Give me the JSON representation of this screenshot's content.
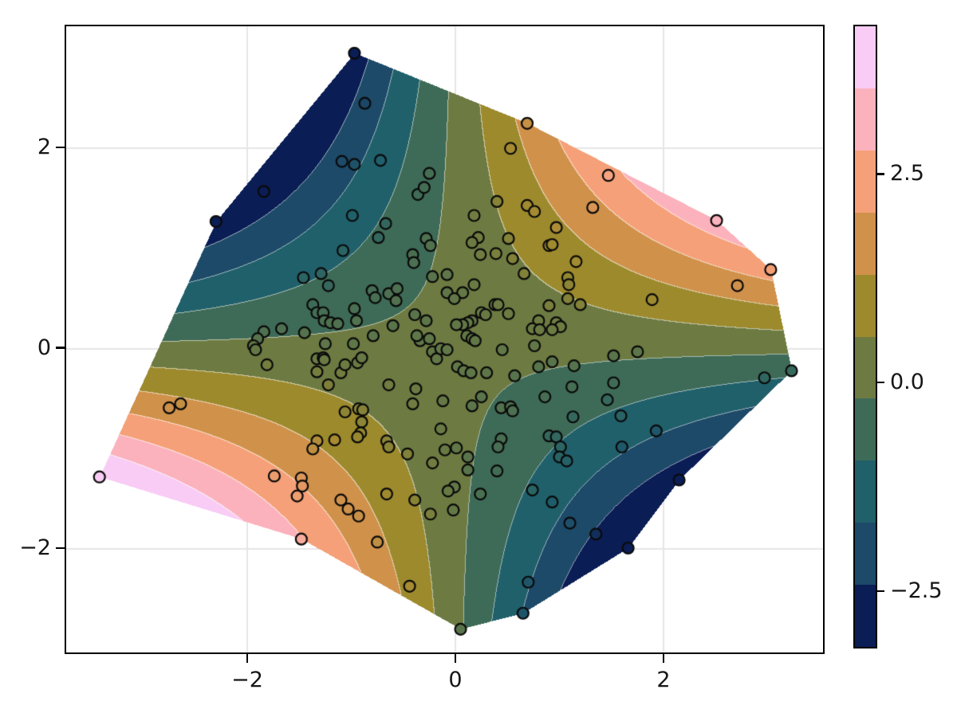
{
  "figure": {
    "background": "#ffffff",
    "grid_color": "#e6e6e6",
    "axis_color": "#000000",
    "label_color": "#161616"
  },
  "chart_data": {
    "type": "filled_contour_with_scatter",
    "title": "",
    "xlabel": "",
    "ylabel": "",
    "x_axis": {
      "ticks": [
        -2,
        0,
        2
      ],
      "tick_labels": [
        "−2",
        "0",
        "2"
      ],
      "range": [
        -3.75,
        3.54
      ],
      "grid": true
    },
    "y_axis": {
      "ticks": [
        2,
        0,
        -2
      ],
      "tick_labels": [
        "2",
        "0",
        "−2"
      ],
      "range": [
        -3.05,
        3.22
      ],
      "grid": true
    },
    "z_model": "saddle z = x*y, linearly contoured over convex hull of the scatter points",
    "levels": {
      "min": -3.17,
      "max": 4.28,
      "n_bands": 10
    },
    "band_colors": [
      "#0b1d55",
      "#1d4a68",
      "#20606b",
      "#3e6b57",
      "#6d7b42",
      "#9d8a2d",
      "#d0914a",
      "#f5a078",
      "#fbb2bc",
      "#f8ccf5"
    ],
    "separator_blend_white": 0.55,
    "marker": {
      "radius": 7,
      "stroke": "#0a0a0a",
      "stroke_width": 2.2
    },
    "colorbar": {
      "ticks": [
        {
          "value": 2.5,
          "label": "2.5"
        },
        {
          "value": 0.0,
          "label": "0.0"
        },
        {
          "value": -2.5,
          "label": "−2.5"
        }
      ]
    },
    "hull": [
      [
        -0.97,
        2.94
      ],
      [
        0.69,
        2.24
      ],
      [
        2.51,
        1.27
      ],
      [
        3.03,
        0.78
      ],
      [
        3.23,
        -0.23
      ],
      [
        2.15,
        -1.32
      ],
      [
        1.66,
        -2.0
      ],
      [
        0.65,
        -2.65
      ],
      [
        0.05,
        -2.81
      ],
      [
        -1.48,
        -1.91
      ],
      [
        -3.42,
        -1.29
      ],
      [
        -2.3,
        1.26
      ]
    ],
    "points": [
      [
        -0.97,
        2.94
      ],
      [
        -0.87,
        2.44
      ],
      [
        -1.09,
        1.86
      ],
      [
        -0.97,
        1.83
      ],
      [
        -0.72,
        1.87
      ],
      [
        -0.25,
        1.74
      ],
      [
        -0.36,
        1.53
      ],
      [
        -0.3,
        1.6
      ],
      [
        -1.84,
        1.56
      ],
      [
        -2.3,
        1.26
      ],
      [
        -0.99,
        1.32
      ],
      [
        -0.67,
        1.24
      ],
      [
        0.69,
        2.24
      ],
      [
        0.53,
        1.99
      ],
      [
        1.47,
        1.72
      ],
      [
        0.4,
        1.46
      ],
      [
        0.18,
        1.32
      ],
      [
        0.69,
        1.42
      ],
      [
        0.76,
        1.36
      ],
      [
        1.32,
        1.4
      ],
      [
        2.51,
        1.27
      ],
      [
        0.97,
        1.2
      ],
      [
        -0.74,
        1.1
      ],
      [
        -0.28,
        1.09
      ],
      [
        -0.24,
        1.02
      ],
      [
        -1.08,
        0.97
      ],
      [
        -0.41,
        0.93
      ],
      [
        -0.4,
        0.85
      ],
      [
        -1.46,
        0.7
      ],
      [
        -1.29,
        0.74
      ],
      [
        -1.22,
        0.62
      ],
      [
        -0.8,
        0.57
      ],
      [
        -0.77,
        0.5
      ],
      [
        -0.64,
        0.54
      ],
      [
        -0.56,
        0.59
      ],
      [
        -0.57,
        0.47
      ],
      [
        -0.22,
        0.71
      ],
      [
        -1.37,
        0.43
      ],
      [
        -1.33,
        0.35
      ],
      [
        -1.27,
        0.35
      ],
      [
        -1.26,
        0.27
      ],
      [
        -1.2,
        0.25
      ],
      [
        -1.13,
        0.24
      ],
      [
        -0.97,
        0.39
      ],
      [
        -0.95,
        0.27
      ],
      [
        -0.39,
        0.33
      ],
      [
        -0.28,
        0.27
      ],
      [
        -0.34,
        0.07
      ],
      [
        -0.25,
        0.09
      ],
      [
        -0.37,
        0.12
      ],
      [
        -1.84,
        0.16
      ],
      [
        -1.67,
        0.19
      ],
      [
        -1.45,
        0.15
      ],
      [
        -1.9,
        0.09
      ],
      [
        -1.94,
        0.02
      ],
      [
        -1.92,
        -0.02
      ],
      [
        -0.79,
        0.12
      ],
      [
        -0.6,
        0.22
      ],
      [
        -1.25,
        0.04
      ],
      [
        -0.98,
        0.04
      ],
      [
        -1.81,
        -0.17
      ],
      [
        -1.33,
        -0.11
      ],
      [
        -1.27,
        -0.1
      ],
      [
        -1.33,
        -0.24
      ],
      [
        -1.26,
        -0.12
      ],
      [
        -1.1,
        -0.25
      ],
      [
        -1.06,
        -0.17
      ],
      [
        -0.94,
        -0.15
      ],
      [
        -0.9,
        -0.1
      ],
      [
        -0.22,
        -0.04
      ],
      [
        -0.18,
        -0.11
      ],
      [
        -0.14,
        -0.01
      ],
      [
        -1.22,
        -0.37
      ],
      [
        -0.64,
        -0.37
      ],
      [
        -0.38,
        -0.41
      ],
      [
        -0.41,
        -0.56
      ],
      [
        -2.75,
        -0.6
      ],
      [
        -2.64,
        -0.56
      ],
      [
        -1.06,
        -0.64
      ],
      [
        -0.93,
        -0.61
      ],
      [
        -0.89,
        -0.62
      ],
      [
        -0.9,
        -0.74
      ],
      [
        -0.91,
        -0.85
      ],
      [
        -0.94,
        -0.89
      ],
      [
        -1.33,
        -0.93
      ],
      [
        -1.16,
        -0.92
      ],
      [
        -0.66,
        -0.93
      ],
      [
        -0.12,
        -0.53
      ],
      [
        -0.14,
        -0.81
      ],
      [
        0.22,
        1.1
      ],
      [
        0.51,
        1.09
      ],
      [
        0.9,
        1.02
      ],
      [
        0.93,
        1.03
      ],
      [
        0.16,
        1.05
      ],
      [
        0.24,
        0.93
      ],
      [
        0.39,
        0.94
      ],
      [
        0.55,
        0.89
      ],
      [
        1.16,
        0.86
      ],
      [
        0.66,
        0.74
      ],
      [
        0.18,
        0.63
      ],
      [
        1.08,
        0.7
      ],
      [
        1.09,
        0.63
      ],
      [
        -0.08,
        0.73
      ],
      [
        -0.08,
        0.55
      ],
      [
        0.07,
        0.55
      ],
      [
        -0.01,
        0.49
      ],
      [
        0.38,
        0.43
      ],
      [
        0.41,
        0.43
      ],
      [
        0.51,
        0.34
      ],
      [
        0.25,
        0.35
      ],
      [
        0.29,
        0.33
      ],
      [
        0.16,
        0.27
      ],
      [
        0.12,
        0.25
      ],
      [
        0.07,
        0.23
      ],
      [
        0.01,
        0.23
      ],
      [
        0.11,
        0.12
      ],
      [
        0.16,
        0.09
      ],
      [
        0.19,
        0.07
      ],
      [
        1.08,
        0.49
      ],
      [
        1.2,
        0.43
      ],
      [
        0.9,
        0.42
      ],
      [
        0.8,
        0.27
      ],
      [
        0.74,
        0.19
      ],
      [
        0.81,
        0.18
      ],
      [
        0.97,
        0.25
      ],
      [
        1.01,
        0.21
      ],
      [
        0.93,
        0.18
      ],
      [
        1.89,
        0.48
      ],
      [
        3.03,
        0.78
      ],
      [
        2.71,
        0.62
      ],
      [
        0.76,
        0.02
      ],
      [
        0.45,
        -0.02
      ],
      [
        -0.08,
        -0.02
      ],
      [
        0.02,
        -0.19
      ],
      [
        0.08,
        -0.23
      ],
      [
        0.15,
        -0.25
      ],
      [
        1.52,
        -0.08
      ],
      [
        1.75,
        -0.04
      ],
      [
        0.3,
        -0.25
      ],
      [
        0.57,
        -0.28
      ],
      [
        0.8,
        -0.19
      ],
      [
        0.93,
        -0.14
      ],
      [
        1.14,
        -0.18
      ],
      [
        1.52,
        -0.35
      ],
      [
        1.46,
        -0.52
      ],
      [
        1.59,
        -0.68
      ],
      [
        0.86,
        -0.49
      ],
      [
        1.12,
        -0.39
      ],
      [
        1.13,
        -0.69
      ],
      [
        0.44,
        -0.6
      ],
      [
        0.53,
        -0.59
      ],
      [
        0.55,
        -0.63
      ],
      [
        0.25,
        -0.49
      ],
      [
        0.16,
        -0.58
      ],
      [
        2.97,
        -0.3
      ],
      [
        3.23,
        -0.23
      ],
      [
        1.93,
        -0.83
      ],
      [
        0.44,
        -0.91
      ],
      [
        0.9,
        -0.88
      ],
      [
        0.97,
        -0.89
      ],
      [
        -3.42,
        -1.29
      ],
      [
        -1.74,
        -1.28
      ],
      [
        -1.48,
        -1.3
      ],
      [
        -1.47,
        -1.38
      ],
      [
        -1.52,
        -1.48
      ],
      [
        -1.1,
        -1.52
      ],
      [
        -1.03,
        -1.61
      ],
      [
        -0.93,
        -1.68
      ],
      [
        -0.66,
        -1.46
      ],
      [
        -0.39,
        -1.52
      ],
      [
        -0.24,
        -1.66
      ],
      [
        -1.37,
        -1.01
      ],
      [
        -0.64,
        -0.99
      ],
      [
        -0.46,
        -1.06
      ],
      [
        -0.22,
        -1.15
      ],
      [
        -1.48,
        -1.91
      ],
      [
        -0.75,
        -1.94
      ],
      [
        -0.44,
        -2.38
      ],
      [
        -0.1,
        -1.02
      ],
      [
        0.01,
        -1.0
      ],
      [
        0.12,
        -1.09
      ],
      [
        0.12,
        -1.22
      ],
      [
        -0.01,
        -1.39
      ],
      [
        -0.07,
        -1.43
      ],
      [
        -0.02,
        -1.62
      ],
      [
        0.41,
        -0.99
      ],
      [
        0.4,
        -1.23
      ],
      [
        0.24,
        -1.46
      ],
      [
        1.01,
        -0.99
      ],
      [
        1.0,
        -1.09
      ],
      [
        1.07,
        -1.13
      ],
      [
        1.6,
        -0.99
      ],
      [
        0.74,
        -1.42
      ],
      [
        0.93,
        -1.54
      ],
      [
        1.1,
        -1.75
      ],
      [
        1.35,
        -1.86
      ],
      [
        1.66,
        -2.0
      ],
      [
        2.15,
        -1.32
      ],
      [
        0.7,
        -2.34
      ],
      [
        0.65,
        -2.65
      ],
      [
        0.05,
        -2.81
      ]
    ]
  }
}
